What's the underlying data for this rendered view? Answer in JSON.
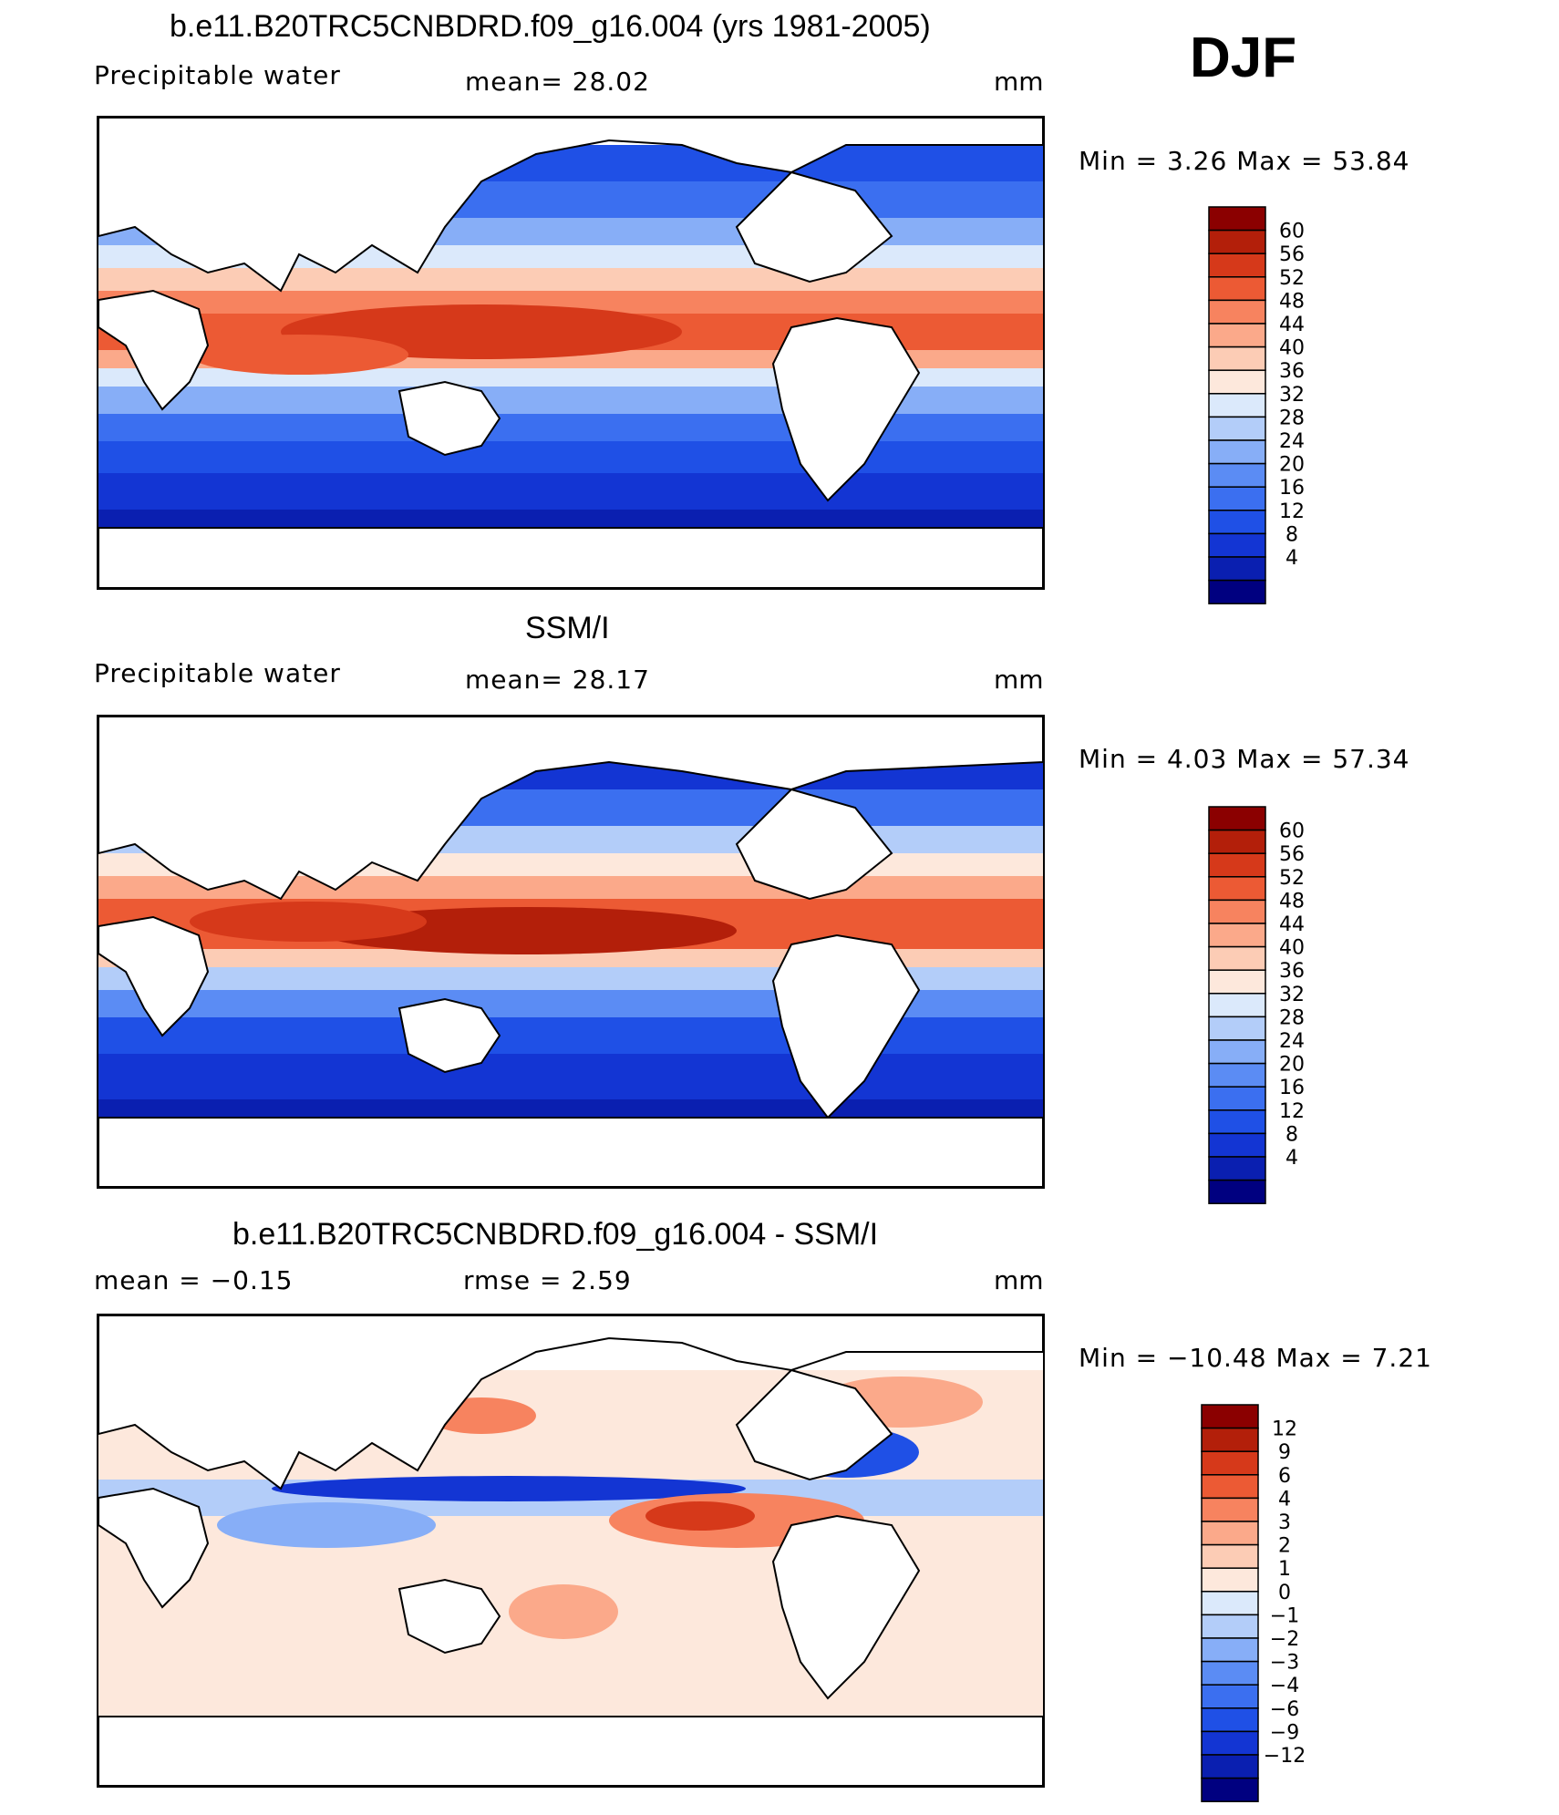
{
  "season_label": "DJF",
  "panels": [
    {
      "title": "b.e11.B20TRC5CNBDRD.f09_g16.004 (yrs 1981-2005)",
      "left_label": "Precipitable water",
      "mid_label": "mean=   28.02",
      "unit": "mm",
      "minmax": "Min =    3.26  Max =   53.84",
      "colorbar_labels": [
        "60",
        "56",
        "52",
        "48",
        "44",
        "40",
        "36",
        "32",
        "28",
        "24",
        "20",
        "16",
        "12",
        "8",
        "4"
      ],
      "colors": [
        "#000080",
        "#0a1fb0",
        "#1335d3",
        "#1f50e6",
        "#3b6ff0",
        "#5b8cf4",
        "#87aef7",
        "#b3cdf9",
        "#dbe9fb",
        "#fde8dc",
        "#fcccb5",
        "#fba98a",
        "#f7835f",
        "#ec5a34",
        "#d6391a",
        "#b31f0a",
        "#8b0000"
      ]
    },
    {
      "title": "SSM/I",
      "left_label": "Precipitable water",
      "mid_label": "mean=   28.17",
      "unit": "mm",
      "minmax": "Min =    4.03  Max =   57.34",
      "colorbar_labels": [
        "60",
        "56",
        "52",
        "48",
        "44",
        "40",
        "36",
        "32",
        "28",
        "24",
        "20",
        "16",
        "12",
        "8",
        "4"
      ],
      "colors": [
        "#000080",
        "#0a1fb0",
        "#1335d3",
        "#1f50e6",
        "#3b6ff0",
        "#5b8cf4",
        "#87aef7",
        "#b3cdf9",
        "#dbe9fb",
        "#fde8dc",
        "#fcccb5",
        "#fba98a",
        "#f7835f",
        "#ec5a34",
        "#d6391a",
        "#b31f0a",
        "#8b0000"
      ]
    },
    {
      "title": "b.e11.B20TRC5CNBDRD.f09_g16.004 - SSM/I",
      "left_label": "mean =   −0.15",
      "mid_label": "rmse =    2.59",
      "unit": "mm",
      "minmax": "Min = −10.48  Max =    7.21",
      "colorbar_labels": [
        "12",
        "9",
        "6",
        "4",
        "3",
        "2",
        "1",
        "0",
        "−1",
        "−2",
        "−3",
        "−4",
        "−6",
        "−9",
        "−12"
      ],
      "colors": [
        "#000080",
        "#0a1fb0",
        "#1335d3",
        "#1f50e6",
        "#3b6ff0",
        "#5b8cf4",
        "#87aef7",
        "#b3cdf9",
        "#dbe9fb",
        "#fde8dc",
        "#fcccb5",
        "#fba98a",
        "#f7835f",
        "#ec5a34",
        "#d6391a",
        "#b31f0a",
        "#8b0000"
      ]
    }
  ]
}
